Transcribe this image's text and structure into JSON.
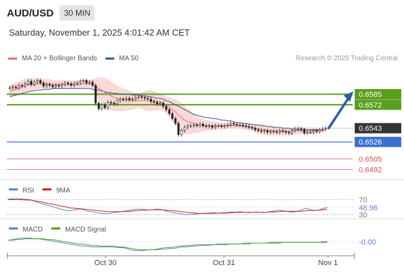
{
  "header": {
    "symbol": "AUD/USD",
    "timeframe": "30 MIN",
    "datetime": "Saturday, November 1, 2025 4:01:42 AM CET"
  },
  "legend": {
    "items": [
      {
        "label": "MA 20 + Bollinger Bands",
        "color": "#ee6e6e"
      },
      {
        "label": "MA 50",
        "color": "#2f5b9c"
      }
    ],
    "credit": "Research © 2025 Trading Central"
  },
  "chart_data": [
    {
      "type": "line",
      "panel": "price",
      "symbol": "AUD/USD",
      "y_range": [
        0.6483,
        0.661
      ],
      "last_price": 0.6543,
      "candles_close": [
        0.6593,
        0.6594,
        0.6593,
        0.6596,
        0.6595,
        0.6598,
        0.6601,
        0.6597,
        0.66,
        0.6602,
        0.6599,
        0.6595,
        0.6597,
        0.6596,
        0.6594,
        0.6596,
        0.6595,
        0.6597,
        0.6599,
        0.6598,
        0.6596,
        0.6598,
        0.6599,
        0.6601,
        0.6602,
        0.6599,
        0.66,
        0.6596,
        0.6574,
        0.6567,
        0.6572,
        0.6568,
        0.6575,
        0.6574,
        0.6573,
        0.6577,
        0.6579,
        0.6578,
        0.658,
        0.6578,
        0.6579,
        0.6581,
        0.6582,
        0.6581,
        0.658,
        0.6579,
        0.6576,
        0.6575,
        0.6573,
        0.6574,
        0.657,
        0.6566,
        0.6561,
        0.6555,
        0.6549,
        0.6535,
        0.654,
        0.6544,
        0.6546,
        0.6546,
        0.6547,
        0.6546,
        0.6548,
        0.6546,
        0.6545,
        0.6546,
        0.6544,
        0.6546,
        0.6546,
        0.6545,
        0.6546,
        0.6547,
        0.6549,
        0.6548,
        0.6547,
        0.6547,
        0.6546,
        0.6545,
        0.6544,
        0.6543,
        0.6541,
        0.654,
        0.6539,
        0.654,
        0.6538,
        0.6539,
        0.6539,
        0.6538,
        0.654,
        0.6539,
        0.6538,
        0.6537,
        0.654,
        0.6542,
        0.6542,
        0.6541,
        0.6537,
        0.6538,
        0.6538,
        0.654,
        0.6539,
        0.6541,
        0.6542,
        0.6543
      ],
      "ma20": [
        0.6588,
        0.659,
        0.6591,
        0.6592,
        0.6594,
        0.6596,
        0.6597,
        0.6597,
        0.6597,
        0.6598,
        0.6598,
        0.6598,
        0.6598,
        0.6598,
        0.6597,
        0.6597,
        0.6597,
        0.6597,
        0.6597,
        0.6597,
        0.6597,
        0.6597,
        0.6597,
        0.6597,
        0.6598,
        0.6598,
        0.6598,
        0.6597,
        0.6595,
        0.6592,
        0.659,
        0.6587,
        0.6585,
        0.6583,
        0.6581,
        0.658,
        0.6579,
        0.6578,
        0.6578,
        0.6577,
        0.6577,
        0.6577,
        0.6577,
        0.6577,
        0.6577,
        0.6577,
        0.6577,
        0.6577,
        0.6576,
        0.6576,
        0.6574,
        0.6572,
        0.6569,
        0.6566,
        0.6563,
        0.6559,
        0.6556,
        0.6553,
        0.6551,
        0.655,
        0.6549,
        0.6548,
        0.6547,
        0.6547,
        0.6546,
        0.6546,
        0.6546,
        0.6546,
        0.6546,
        0.6546,
        0.6546,
        0.6546,
        0.6546,
        0.6546,
        0.6546,
        0.6546,
        0.6545,
        0.6545,
        0.6545,
        0.6544,
        0.6543,
        0.6542,
        0.6542,
        0.6541,
        0.654,
        0.654,
        0.654,
        0.6539,
        0.6539,
        0.6539,
        0.6539,
        0.6539,
        0.6539,
        0.654,
        0.654,
        0.654,
        0.654,
        0.654,
        0.654,
        0.654,
        0.654,
        0.654,
        0.6541,
        0.6541
      ],
      "ma50": [
        0.6582,
        0.6583,
        0.6584,
        0.6585,
        0.6586,
        0.6587,
        0.6588,
        0.6589,
        0.6589,
        0.659,
        0.659,
        0.6591,
        0.6591,
        0.6591,
        0.6592,
        0.6592,
        0.6592,
        0.6592,
        0.6592,
        0.6592,
        0.6592,
        0.6592,
        0.6592,
        0.6592,
        0.6592,
        0.6592,
        0.6592,
        0.6591,
        0.659,
        0.659,
        0.6589,
        0.6588,
        0.6587,
        0.6587,
        0.6586,
        0.6586,
        0.6585,
        0.6585,
        0.6585,
        0.6585,
        0.6584,
        0.6584,
        0.6584,
        0.6583,
        0.6583,
        0.6582,
        0.6582,
        0.6581,
        0.658,
        0.658,
        0.6579,
        0.6577,
        0.6576,
        0.6574,
        0.6572,
        0.657,
        0.6568,
        0.6566,
        0.6564,
        0.6562,
        0.656,
        0.6559,
        0.6558,
        0.6557,
        0.6556,
        0.6556,
        0.6555,
        0.6555,
        0.6554,
        0.6553,
        0.6553,
        0.6552,
        0.6552,
        0.6551,
        0.655,
        0.655,
        0.6549,
        0.6549,
        0.6548,
        0.6548,
        0.6547,
        0.6547,
        0.6546,
        0.6546,
        0.6545,
        0.6545,
        0.6544,
        0.6544,
        0.6544,
        0.6543,
        0.6543,
        0.6543,
        0.6542,
        0.6542,
        0.6542,
        0.6542,
        0.6542,
        0.6541,
        0.6541,
        0.6541,
        0.6541,
        0.6541,
        0.6541,
        0.6541
      ],
      "bb_width": [
        0.0008,
        0.0008,
        0.0009,
        0.0009,
        0.0009,
        0.0008,
        0.0008,
        0.0008,
        0.0007,
        0.0007,
        0.0006,
        0.0006,
        0.0006,
        0.0006,
        0.0005,
        0.0005,
        0.0005,
        0.0005,
        0.0005,
        0.0005,
        0.0005,
        0.0005,
        0.0005,
        0.0005,
        0.0005,
        0.0005,
        0.0005,
        0.0006,
        0.001,
        0.0014,
        0.0016,
        0.0018,
        0.0018,
        0.0018,
        0.0017,
        0.0016,
        0.0015,
        0.0014,
        0.0013,
        0.0012,
        0.0011,
        0.001,
        0.0009,
        0.001,
        0.0012,
        0.0013,
        0.0013,
        0.0012,
        0.0011,
        0.001,
        0.001,
        0.001,
        0.0012,
        0.0014,
        0.0016,
        0.0018,
        0.0018,
        0.0017,
        0.0016,
        0.0014,
        0.0012,
        0.0011,
        0.0009,
        0.0008,
        0.0007,
        0.0006,
        0.0006,
        0.0005,
        0.0005,
        0.0004,
        0.0004,
        0.0004,
        0.0004,
        0.0004,
        0.0004,
        0.0004,
        0.0004,
        0.0004,
        0.0004,
        0.0004,
        0.0005,
        0.0005,
        0.0006,
        0.0006,
        0.0006,
        0.0006,
        0.0006,
        0.0005,
        0.0005,
        0.0005,
        0.0005,
        0.0005,
        0.0005,
        0.0005,
        0.0005,
        0.0005,
        0.0004,
        0.0004,
        0.0004,
        0.0004,
        0.0004,
        0.0003,
        0.0003,
        0.0003
      ],
      "levels": [
        {
          "value": 0.6585,
          "label": "0.6585",
          "role": "target",
          "color": "#5a9e1c"
        },
        {
          "value": 0.6572,
          "label": "0.6572",
          "role": "resistance",
          "color": "#5a9e1c"
        },
        {
          "value": 0.6543,
          "label": "0.6543",
          "role": "last price",
          "color": "#333333"
        },
        {
          "value": 0.6526,
          "label": "0.6526",
          "role": "pivot",
          "color": "#3b6fd4"
        },
        {
          "value": 0.6505,
          "label": "0.6505",
          "role": "support",
          "color": "#d9534f"
        },
        {
          "value": 0.6492,
          "label": "0.6492",
          "role": "support",
          "color": "#d9534f"
        }
      ],
      "projection": {
        "from": 0.6543,
        "to": 0.6585,
        "direction": "up",
        "color": "#2f5b9c"
      }
    },
    {
      "type": "line",
      "panel": "RSI",
      "series_labels": [
        "RSI",
        "9MA"
      ],
      "colors": [
        "#5b7fd6",
        "#cc2222"
      ],
      "y_range": [
        25,
        80
      ],
      "levels": [
        70,
        30
      ],
      "level_labels": [
        "70",
        "30"
      ],
      "current_label": "48.96",
      "rsi": [
        72,
        72,
        73,
        72,
        71,
        70,
        66,
        62,
        58,
        55,
        52,
        48,
        45,
        42,
        40,
        42,
        45,
        44,
        40,
        38,
        36,
        34,
        33,
        33,
        35,
        37,
        38,
        40,
        42,
        44,
        45,
        44,
        42,
        43,
        45,
        44,
        40,
        37,
        35,
        33,
        31,
        30,
        31,
        32,
        33,
        34,
        34,
        35,
        34,
        35,
        36,
        37,
        36,
        38,
        36,
        35,
        36,
        37,
        35,
        36,
        38,
        40,
        42,
        40,
        38,
        36,
        38,
        42,
        47,
        44,
        41,
        42,
        46,
        49
      ],
      "ma9": [
        70,
        70,
        70,
        70,
        69,
        69,
        67,
        65,
        63,
        60,
        58,
        56,
        53,
        51,
        48,
        47,
        46,
        45,
        44,
        43,
        41,
        40,
        39,
        38,
        38,
        38,
        38,
        38,
        39,
        40,
        41,
        42,
        42,
        43,
        43,
        43,
        42,
        41,
        40,
        39,
        37,
        36,
        35,
        34,
        33,
        33,
        33,
        33,
        34,
        34,
        34,
        35,
        35,
        36,
        36,
        36,
        36,
        36,
        36,
        36,
        37,
        37,
        38,
        39,
        39,
        39,
        39,
        39,
        40,
        41,
        41,
        42,
        43,
        44
      ]
    },
    {
      "type": "line",
      "panel": "MACD",
      "series_labels": [
        "MACD",
        "MACD Signal"
      ],
      "colors": [
        "#5b7fd6",
        "#5a9e1c"
      ],
      "y_range": [
        -0.0016,
        0.0012
      ],
      "current_label": "-0.00",
      "macd": [
        0.0002,
        0.0003,
        0.0004,
        0.0005,
        0.0005,
        0.0005,
        0.0004,
        0.0004,
        0.0003,
        0.0002,
        0.0001,
        0.0,
        -0.0001,
        -0.0002,
        -0.0003,
        -0.0004,
        -0.0005,
        -0.0006,
        -0.0006,
        -0.0007,
        -0.0007,
        -0.0007,
        -0.0007,
        -0.0007,
        -0.0007,
        -0.0008,
        -0.0008,
        -0.0009,
        -0.0011,
        -0.0012,
        -0.0012,
        -0.0012,
        -0.0011,
        -0.0011,
        -0.001,
        -0.0009,
        -0.0008,
        -0.0008,
        -0.0007,
        -0.0006,
        -0.0006,
        -0.0005,
        -0.0005,
        -0.0004,
        -0.0004,
        -0.0004,
        -0.0004,
        -0.0004,
        -0.0003,
        -0.0003,
        -0.0003,
        -0.0003,
        -0.0003,
        -0.0003,
        -0.0002,
        -0.0002,
        -0.0002,
        -0.0002,
        -0.0002,
        -0.0002,
        -0.0001,
        -0.0001,
        -0.0001,
        -0.0001,
        -0.0001,
        -0.0001,
        -0.0001,
        -0.0001,
        -0.0001,
        -0.0001,
        -0.0001,
        -0.0001,
        -0.0,
        -0.0
      ],
      "signal": [
        0.0002,
        0.0002,
        0.0003,
        0.0003,
        0.0004,
        0.0004,
        0.0004,
        0.0004,
        0.0004,
        0.0003,
        0.0003,
        0.0002,
        0.0001,
        0.0,
        -0.0001,
        -0.0002,
        -0.0003,
        -0.0003,
        -0.0004,
        -0.0005,
        -0.0005,
        -0.0006,
        -0.0006,
        -0.0006,
        -0.0006,
        -0.0007,
        -0.0007,
        -0.0008,
        -0.0009,
        -0.001,
        -0.0011,
        -0.0011,
        -0.0011,
        -0.0011,
        -0.0011,
        -0.001,
        -0.001,
        -0.0009,
        -0.0009,
        -0.0008,
        -0.0007,
        -0.0007,
        -0.0006,
        -0.0006,
        -0.0005,
        -0.0005,
        -0.0005,
        -0.0004,
        -0.0004,
        -0.0004,
        -0.0004,
        -0.0003,
        -0.0003,
        -0.0003,
        -0.0003,
        -0.0003,
        -0.0002,
        -0.0002,
        -0.0002,
        -0.0002,
        -0.0002,
        -0.0002,
        -0.0002,
        -0.0001,
        -0.0001,
        -0.0001,
        -0.0001,
        -0.0001,
        -0.0001,
        -0.0001,
        -0.0001,
        -0.0001,
        -0.0001,
        -0.0001
      ]
    }
  ],
  "x_axis": {
    "labels": [
      "Oct 30",
      "Oct 31",
      "Nov 1"
    ]
  }
}
